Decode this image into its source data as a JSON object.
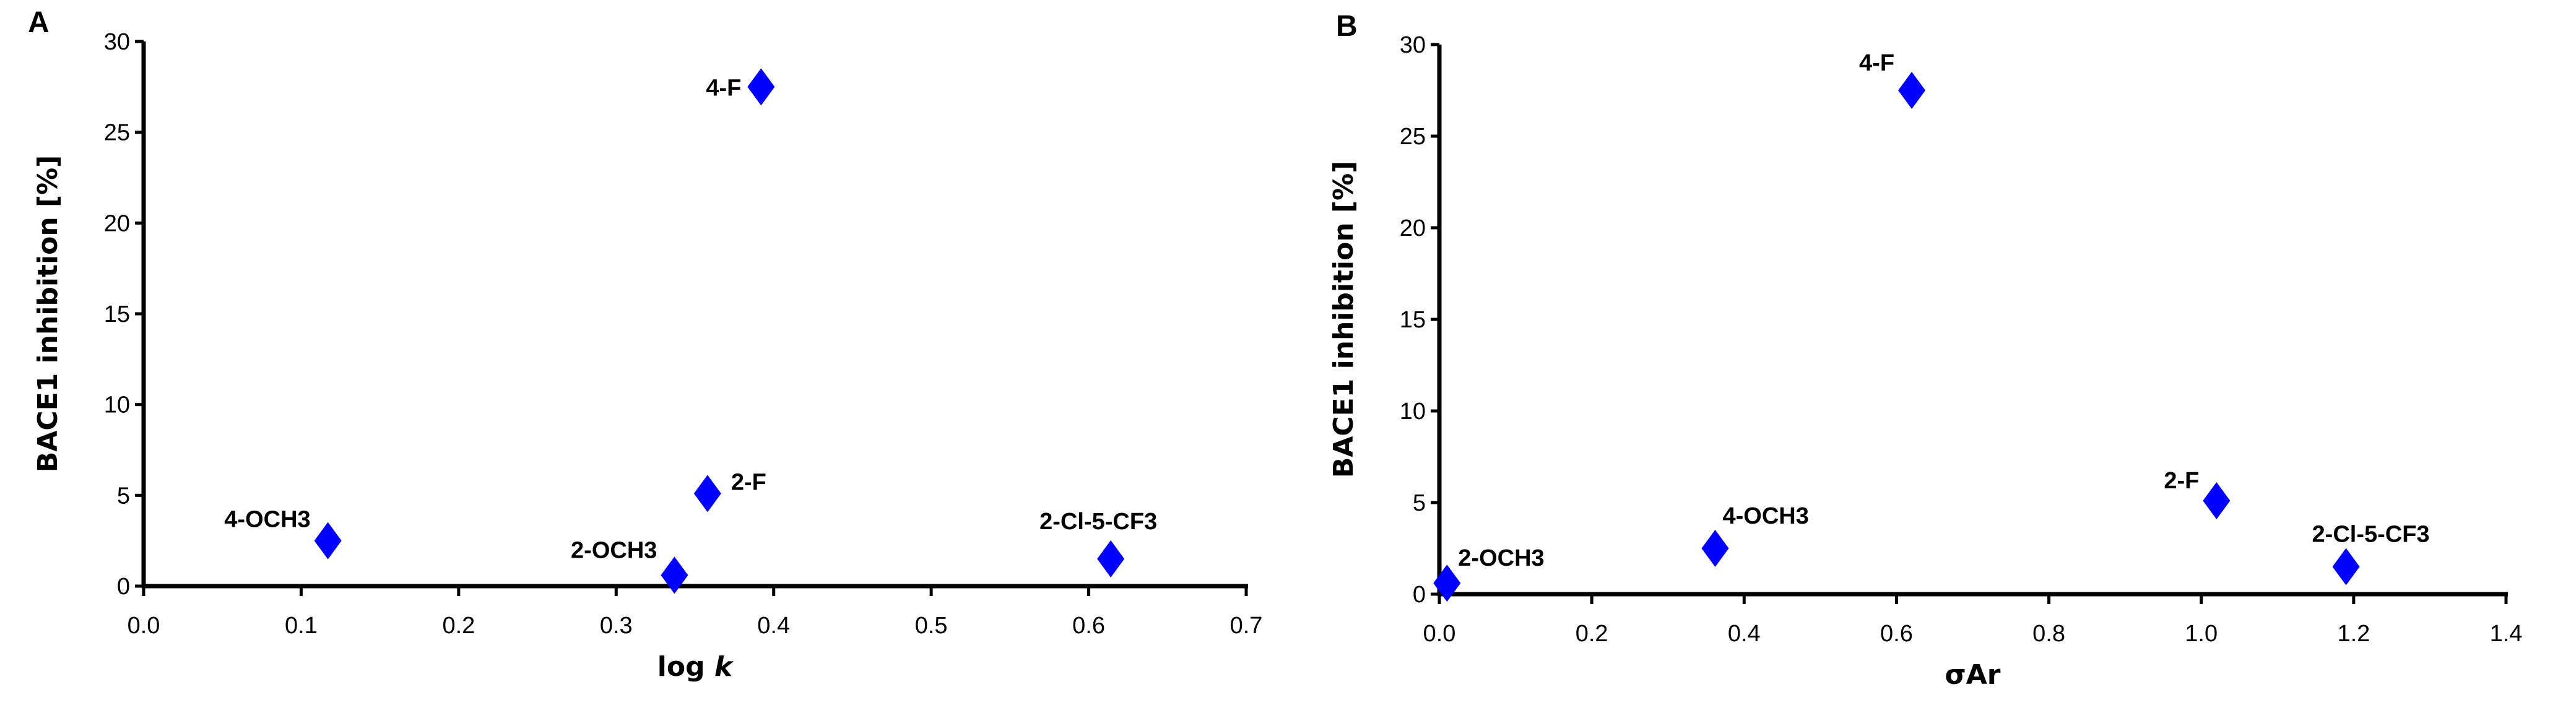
{
  "chart_data": [
    {
      "type": "scatter",
      "panel_label": "A",
      "xlabel": "log k",
      "xlabel_parts": {
        "text": "log ",
        "italic": "k"
      },
      "ylabel": "BACE1 inhibition [%]",
      "xlim": [
        0,
        0.7
      ],
      "ylim": [
        0,
        30
      ],
      "xticks": [
        "0.0",
        "0.1",
        "0.2",
        "0.3",
        "0.4",
        "0.5",
        "0.6",
        "0.7"
      ],
      "yticks": [
        "0",
        "5",
        "10",
        "15",
        "20",
        "25",
        "30"
      ],
      "grid": false,
      "marker": "diamond",
      "color": "#0000ff",
      "points": [
        {
          "label": "4-F",
          "x": 0.392,
          "y": 27.5
        },
        {
          "label": "2-F",
          "x": 0.358,
          "y": 5.1
        },
        {
          "label": "4-OCH3",
          "x": 0.117,
          "y": 2.5
        },
        {
          "label": "2-OCH3",
          "x": 0.337,
          "y": 0.6
        },
        {
          "label": "2-Cl-5-CF3",
          "x": 0.614,
          "y": 1.5
        }
      ]
    },
    {
      "type": "scatter",
      "panel_label": "B",
      "xlabel": "σAr",
      "xlabel_parts": {
        "text": "σ",
        "sub": "Ar"
      },
      "ylabel": "BACE1 inhibition [%]",
      "xlim": [
        0,
        1.4
      ],
      "ylim": [
        0,
        30
      ],
      "xticks": [
        "0.0",
        "0.2",
        "0.4",
        "0.6",
        "0.8",
        "1.0",
        "1.2",
        "1.4"
      ],
      "yticks": [
        "0",
        "5",
        "10",
        "15",
        "20",
        "25",
        "30"
      ],
      "grid": false,
      "marker": "diamond",
      "color": "#0000ff",
      "points": [
        {
          "label": "2-OCH3",
          "x": 0.01,
          "y": 0.6
        },
        {
          "label": "4-OCH3",
          "x": 0.362,
          "y": 2.5
        },
        {
          "label": "4-F",
          "x": 0.62,
          "y": 27.5
        },
        {
          "label": "2-F",
          "x": 1.02,
          "y": 5.1
        },
        {
          "label": "2-Cl-5-CF3",
          "x": 1.19,
          "y": 1.5
        }
      ]
    }
  ]
}
